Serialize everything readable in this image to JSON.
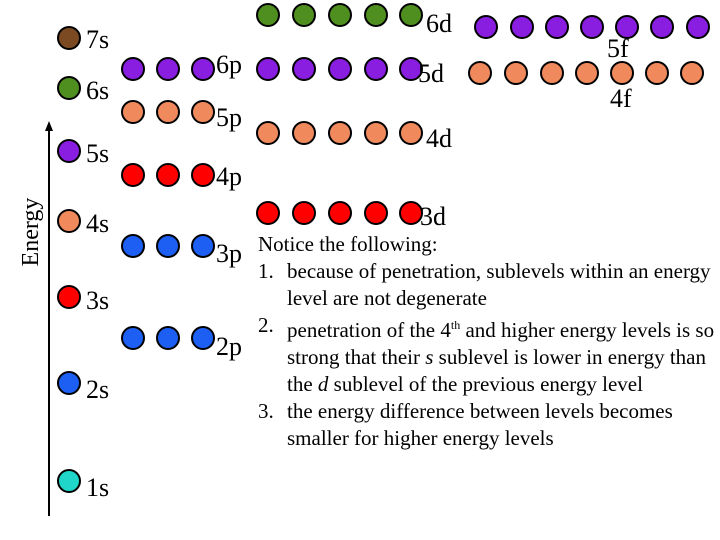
{
  "axis": {
    "label": "Energy"
  },
  "colors": {
    "7s": "#7b4a22",
    "6s": "#4f8f1f",
    "6p": "#8a1ee0",
    "6d": "#4f8f1f",
    "5s": "#8a1ee0",
    "5p": "#f08a5d",
    "5d": "#8a1ee0",
    "5f": "#8a1ee0",
    "4s": "#f08a5d",
    "4p": "#ff0000",
    "4d": "#f08a5d",
    "4f": "#f08a5d",
    "3s": "#ff0000",
    "3p": "#1c5ff2",
    "3d": "#ff0000",
    "2s": "#1c5ff2",
    "2p": "#1c5ff2",
    "1s": "#1fd6c8"
  },
  "sublevels": [
    "7s",
    "6s",
    "5s",
    "4s",
    "3s",
    "2s",
    "1s",
    "6p",
    "5p",
    "4p",
    "3p",
    "2p",
    "6d",
    "5d",
    "4d",
    "3d",
    "5f",
    "4f"
  ],
  "notes": {
    "heading": "Notice the following:",
    "items": [
      {
        "num": "1.",
        "text": "because of penetration, sublevels within an energy level are not degenerate"
      },
      {
        "num": "2.",
        "pre": "penetration of the 4",
        "sup": "th",
        "mid": " and higher energy levels is so strong that their ",
        "s": "s",
        "mid2": " sublevel is lower in energy than the ",
        "d": "d",
        "post": " sublevel of the previous energy level"
      },
      {
        "num": "3.",
        "text": "the energy difference between levels becomes smaller for higher energy levels"
      }
    ]
  }
}
